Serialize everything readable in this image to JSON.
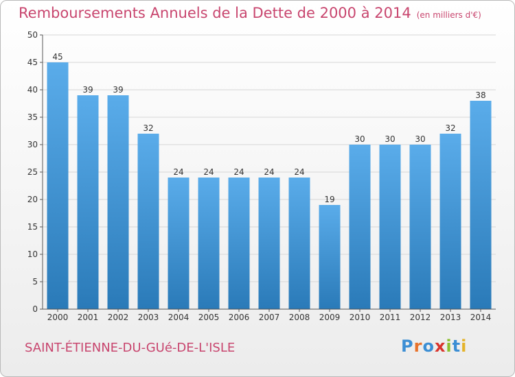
{
  "title": "Remboursements Annuels de la Dette de 2000 à 2014",
  "unit": "(en milliers d'€)",
  "commune": "SAINT-ÉTIENNE-DU-GUé-DE-L'ISLE",
  "logo": {
    "text": "Proxiti",
    "colors": [
      "#3b8ed4",
      "#e8722a",
      "#3b8ed4",
      "#d9342c",
      "#8cbf2f",
      "#3b8ed4",
      "#e4b32a"
    ]
  },
  "colors": {
    "bar_light": "#5aacea",
    "bar_dark": "#2a7ab8",
    "title": "#c8456e",
    "grid": "#d6d6d6",
    "axis": "#555555"
  },
  "chart_data": {
    "type": "bar",
    "categories": [
      "2000",
      "2001",
      "2002",
      "2003",
      "2004",
      "2005",
      "2006",
      "2007",
      "2008",
      "2009",
      "2010",
      "2011",
      "2012",
      "2013",
      "2014"
    ],
    "values": [
      45,
      39,
      39,
      32,
      24,
      24,
      24,
      24,
      24,
      19,
      30,
      30,
      30,
      32,
      38
    ],
    "title": "Remboursements Annuels de la Dette de 2000 à 2014",
    "xlabel": "",
    "ylabel": "",
    "ylim": [
      0,
      50
    ],
    "yticks": [
      0,
      5,
      10,
      15,
      20,
      25,
      30,
      35,
      40,
      45,
      50
    ],
    "grid": true,
    "data_labels": true
  }
}
